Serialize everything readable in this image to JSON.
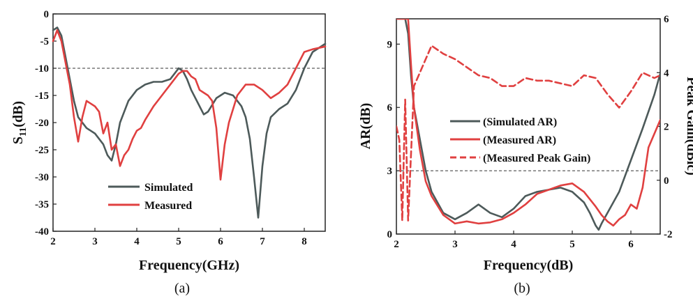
{
  "colors": {
    "simulated": "#4d5a5a",
    "measured": "#e04040",
    "threshold": "#333333"
  },
  "chart_data": [
    {
      "type": "line",
      "caption": "(a)",
      "xlabel": "Frequency(GHz)",
      "ylabel_main": "S",
      "ylabel_sub": "11",
      "ylabel_unit": "(dB)",
      "xlim": [
        2,
        8.5
      ],
      "ylim": [
        -40,
        0
      ],
      "xticks": [
        2,
        3,
        4,
        5,
        6,
        7,
        8
      ],
      "yticks": [
        0,
        -5,
        -10,
        -15,
        -20,
        -25,
        -30,
        -35,
        -40
      ],
      "threshold": -10,
      "legend_position": "bottom-center",
      "series": [
        {
          "name": "Simulated",
          "color_key": "simulated",
          "x": [
            2.0,
            2.1,
            2.2,
            2.3,
            2.4,
            2.5,
            2.6,
            2.8,
            3.0,
            3.2,
            3.3,
            3.4,
            3.5,
            3.6,
            3.8,
            4.0,
            4.2,
            4.4,
            4.6,
            4.8,
            4.9,
            5.0,
            5.1,
            5.2,
            5.3,
            5.5,
            5.6,
            5.7,
            5.9,
            6.1,
            6.3,
            6.5,
            6.6,
            6.7,
            6.8,
            6.9,
            7.0,
            7.1,
            7.2,
            7.4,
            7.6,
            7.8,
            8.0,
            8.2,
            8.5
          ],
          "y": [
            -3,
            -2.5,
            -4,
            -8,
            -12,
            -16,
            -19,
            -21,
            -22,
            -24,
            -26,
            -27,
            -24,
            -20,
            -16,
            -14,
            -13,
            -12.5,
            -12.5,
            -12,
            -11,
            -10,
            -10.5,
            -12,
            -14,
            -17,
            -18.5,
            -18,
            -15.5,
            -14.5,
            -15,
            -17,
            -19,
            -23,
            -30,
            -37.5,
            -28,
            -22,
            -19,
            -17.5,
            -16.5,
            -14,
            -10,
            -7,
            -5.5
          ]
        },
        {
          "name": "Measured",
          "color_key": "measured",
          "x": [
            2.0,
            2.1,
            2.2,
            2.3,
            2.4,
            2.5,
            2.6,
            2.7,
            2.8,
            3.0,
            3.1,
            3.2,
            3.3,
            3.4,
            3.5,
            3.6,
            3.7,
            3.8,
            3.9,
            4.0,
            4.1,
            4.2,
            4.4,
            4.6,
            4.8,
            5.0,
            5.1,
            5.2,
            5.3,
            5.4,
            5.5,
            5.6,
            5.7,
            5.8,
            5.9,
            6.0,
            6.1,
            6.2,
            6.4,
            6.6,
            6.8,
            7.0,
            7.2,
            7.4,
            7.6,
            7.8,
            8.0,
            8.2,
            8.5
          ],
          "y": [
            -5,
            -3,
            -5,
            -9,
            -13,
            -19,
            -23.5,
            -19,
            -16,
            -17,
            -18,
            -22,
            -20,
            -25,
            -24,
            -28,
            -26,
            -25,
            -23,
            -21.5,
            -21,
            -19.5,
            -17,
            -15,
            -13,
            -11,
            -10.5,
            -10.5,
            -11.5,
            -12,
            -14,
            -14.5,
            -15,
            -16,
            -21,
            -30.5,
            -24,
            -20,
            -15,
            -13,
            -13,
            -14,
            -15.5,
            -14.5,
            -13,
            -10,
            -7,
            -6.5,
            -6
          ]
        }
      ]
    },
    {
      "type": "line",
      "caption": "(b)",
      "xlabel": "Frequency(dB)",
      "ylabel": "AR(dB)",
      "ylabel_right": "Peak Gain(dBic)",
      "xlim": [
        2,
        6.5
      ],
      "ylim": [
        0,
        10.2
      ],
      "ylim_right": [
        -2,
        6
      ],
      "xticks": [
        2,
        3,
        4,
        5,
        6
      ],
      "yticks": [
        0,
        3,
        6,
        9
      ],
      "yticks_right": [
        -2,
        0,
        2,
        4,
        6
      ],
      "threshold": 3,
      "legend_position": "center",
      "series": [
        {
          "name": "(Simulated AR)",
          "axis": "left",
          "color_key": "simulated",
          "x": [
            2.0,
            2.05,
            2.1,
            2.15,
            2.2,
            2.25,
            2.3,
            2.4,
            2.5,
            2.6,
            2.8,
            3.0,
            3.2,
            3.4,
            3.6,
            3.8,
            4.0,
            4.2,
            4.4,
            4.6,
            4.8,
            5.0,
            5.2,
            5.3,
            5.4,
            5.45,
            5.5,
            5.6,
            5.8,
            6.0,
            6.2,
            6.4,
            6.5
          ],
          "y": [
            10.2,
            10.2,
            10.2,
            10.2,
            9.5,
            7.5,
            6,
            4.5,
            3,
            2,
            1,
            0.7,
            1,
            1.4,
            1,
            0.8,
            1.2,
            1.8,
            2,
            2.1,
            2.2,
            2,
            1.5,
            1,
            0.4,
            0.2,
            0.5,
            1,
            2,
            3.5,
            5,
            6.6,
            7.6
          ]
        },
        {
          "name": "(Measured AR)",
          "axis": "left",
          "color_key": "measured",
          "x": [
            2.0,
            2.05,
            2.1,
            2.2,
            2.25,
            2.3,
            2.4,
            2.5,
            2.6,
            2.8,
            3.0,
            3.2,
            3.4,
            3.6,
            3.8,
            4.0,
            4.2,
            4.4,
            4.6,
            4.8,
            5.0,
            5.2,
            5.4,
            5.5,
            5.6,
            5.7,
            5.8,
            5.9,
            6.0,
            6.1,
            6.2,
            6.3,
            6.5
          ],
          "y": [
            10.2,
            10.2,
            10.2,
            10.2,
            8,
            6,
            4,
            2.5,
            1.8,
            0.9,
            0.5,
            0.6,
            0.5,
            0.55,
            0.7,
            1,
            1.4,
            1.9,
            2.1,
            2.3,
            2.4,
            2,
            1.3,
            0.9,
            0.6,
            0.4,
            0.7,
            0.9,
            1.4,
            1.2,
            2.2,
            4.1,
            5.4
          ]
        },
        {
          "name": "(Measured Peak Gain)",
          "axis": "right",
          "color_key": "measured",
          "dashed": true,
          "x": [
            2.0,
            2.05,
            2.1,
            2.15,
            2.2,
            2.25,
            2.3,
            2.4,
            2.5,
            2.6,
            2.8,
            3.0,
            3.2,
            3.4,
            3.6,
            3.8,
            4.0,
            4.2,
            4.4,
            4.6,
            4.8,
            5.0,
            5.2,
            5.4,
            5.6,
            5.8,
            6.0,
            6.2,
            6.4,
            6.5
          ],
          "y": [
            2,
            1.5,
            -1.5,
            3,
            -1.5,
            1,
            3.5,
            4,
            4.5,
            5,
            4.7,
            4.5,
            4.2,
            3.9,
            3.8,
            3.5,
            3.5,
            3.8,
            3.7,
            3.7,
            3.6,
            3.5,
            3.9,
            3.8,
            3.2,
            2.7,
            3.3,
            4,
            3.8,
            3.9
          ]
        }
      ]
    }
  ]
}
